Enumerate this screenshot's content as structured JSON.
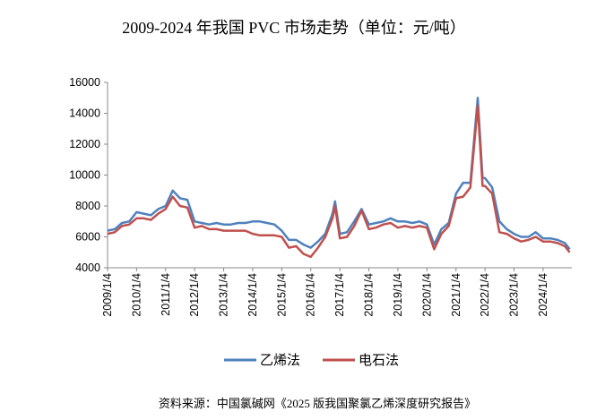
{
  "chart_data": {
    "type": "line",
    "title": "2009-2024 年我国 PVC 市场走势（单位：元/吨）",
    "source": "资料来源：中国氯碱网《2025 版我国聚氯乙烯深度研究报告》",
    "x": [
      "2009/1/4",
      "2009/4/4",
      "2009/7/4",
      "2009/10/4",
      "2010/1/4",
      "2010/4/4",
      "2010/7/4",
      "2010/10/4",
      "2011/1/4",
      "2011/4/4",
      "2011/7/4",
      "2011/10/4",
      "2012/1/4",
      "2012/4/4",
      "2012/7/4",
      "2012/10/4",
      "2013/1/4",
      "2013/4/4",
      "2013/7/4",
      "2013/10/4",
      "2014/1/4",
      "2014/4/4",
      "2014/7/4",
      "2014/10/4",
      "2015/1/4",
      "2015/4/4",
      "2015/7/4",
      "2015/10/4",
      "2016/1/4",
      "2016/4/4",
      "2016/7/4",
      "2016/10/4",
      "2016/11/4",
      "2017/1/4",
      "2017/4/4",
      "2017/7/4",
      "2017/10/4",
      "2018/1/4",
      "2018/4/4",
      "2018/7/4",
      "2018/10/4",
      "2019/1/4",
      "2019/4/4",
      "2019/7/4",
      "2019/10/4",
      "2020/1/4",
      "2020/4/4",
      "2020/7/4",
      "2020/10/4",
      "2021/1/4",
      "2021/4/4",
      "2021/7/4",
      "2021/10/4",
      "2021/12/4",
      "2022/1/4",
      "2022/4/4",
      "2022/7/4",
      "2022/10/4",
      "2023/1/4",
      "2023/4/4",
      "2023/7/4",
      "2023/10/4",
      "2024/1/4",
      "2024/4/4",
      "2024/7/4",
      "2024/10/4",
      "2024/12/4"
    ],
    "series": [
      {
        "name": "乙烯法",
        "color": "#4f81bd",
        "values": [
          6400,
          6500,
          6900,
          7000,
          7600,
          7500,
          7400,
          7800,
          8000,
          9000,
          8500,
          8400,
          7000,
          6900,
          6800,
          6900,
          6800,
          6800,
          6900,
          6900,
          7000,
          7000,
          6900,
          6800,
          6400,
          5800,
          5800,
          5500,
          5300,
          5700,
          6200,
          7500,
          8300,
          6200,
          6300,
          7000,
          7800,
          6800,
          6900,
          7000,
          7200,
          7000,
          7000,
          6900,
          7000,
          6800,
          5500,
          6500,
          6900,
          8800,
          9500,
          9500,
          15000,
          9800,
          9800,
          9200,
          7000,
          6500,
          6200,
          6000,
          6000,
          6300,
          5900,
          5900,
          5800,
          5600,
          5200
        ]
      },
      {
        "name": "电石法",
        "color": "#c0504d",
        "values": [
          6200,
          6300,
          6700,
          6800,
          7200,
          7200,
          7100,
          7500,
          7800,
          8600,
          8000,
          7900,
          6600,
          6700,
          6500,
          6500,
          6400,
          6400,
          6400,
          6400,
          6200,
          6100,
          6100,
          6100,
          6000,
          5300,
          5400,
          4900,
          4700,
          5300,
          6000,
          7200,
          8000,
          5900,
          6000,
          6700,
          7700,
          6500,
          6600,
          6800,
          6900,
          6600,
          6700,
          6600,
          6700,
          6600,
          5200,
          6200,
          6700,
          8500,
          8600,
          9200,
          14500,
          9300,
          9300,
          8800,
          6300,
          6200,
          5900,
          5700,
          5800,
          6000,
          5700,
          5700,
          5600,
          5400,
          5000
        ]
      }
    ],
    "xlim": [
      "2009/1/4",
      "2024/12/31"
    ],
    "xticks": [
      "2009/1/4",
      "2010/1/4",
      "2011/1/4",
      "2012/1/4",
      "2013/1/4",
      "2014/1/4",
      "2015/1/4",
      "2016/1/4",
      "2017/1/4",
      "2018/1/4",
      "2019/1/4",
      "2020/1/4",
      "2021/1/4",
      "2022/1/4",
      "2023/1/4",
      "2024/1/4"
    ],
    "ylim": [
      4000,
      16000
    ],
    "yticks": [
      4000,
      6000,
      8000,
      10000,
      12000,
      14000,
      16000
    ],
    "grid": false,
    "legend": "bottom"
  }
}
